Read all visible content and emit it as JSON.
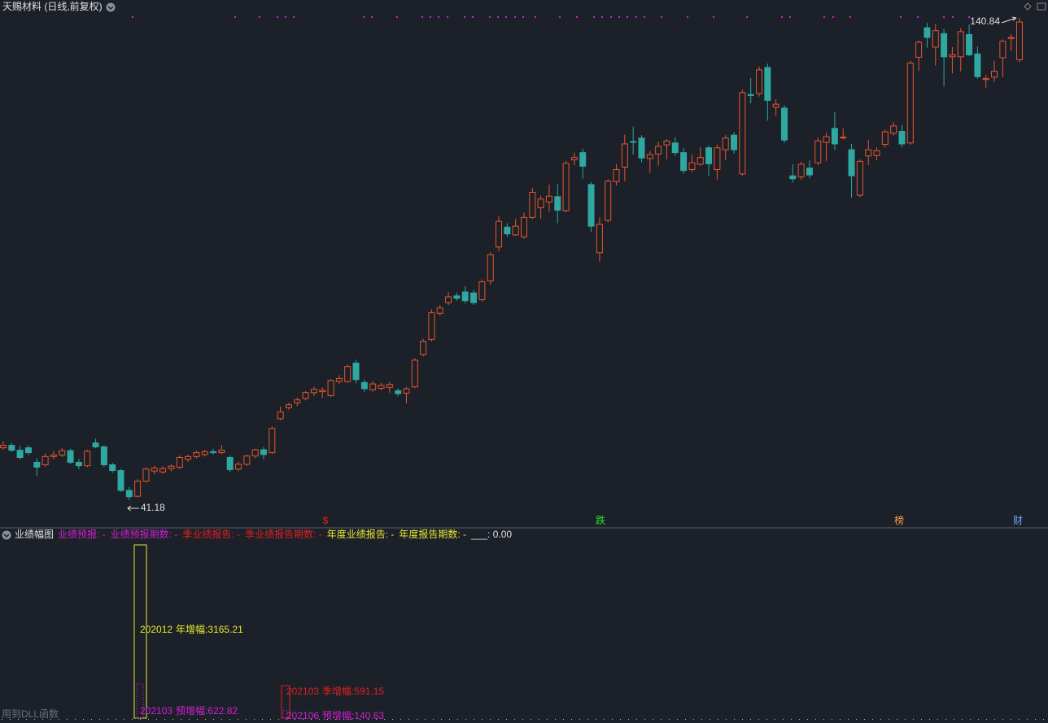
{
  "header": {
    "title": "天赐材料 (日线,前复权)"
  },
  "chart_data": {
    "type": "candlestick",
    "up_color": "#e8562a",
    "down_color": "#2ea8a0",
    "candles": [
      [
        52.0,
        53.3,
        51.6,
        52.5
      ],
      [
        52.5,
        53.0,
        51.1,
        51.5
      ],
      [
        51.5,
        52.4,
        49.6,
        50.0
      ],
      [
        52.0,
        52.5,
        50.5,
        51.0
      ],
      [
        49.0,
        49.8,
        46.2,
        48.0
      ],
      [
        48.5,
        50.8,
        48.1,
        50.2
      ],
      [
        50.2,
        51.3,
        49.6,
        50.5
      ],
      [
        50.5,
        52.0,
        50.1,
        51.4
      ],
      [
        51.4,
        51.8,
        48.6,
        49.0
      ],
      [
        49.0,
        49.7,
        47.6,
        48.3
      ],
      [
        48.3,
        51.6,
        48.0,
        51.3
      ],
      [
        53.0,
        53.9,
        51.9,
        52.2
      ],
      [
        52.2,
        52.5,
        48.1,
        48.5
      ],
      [
        48.5,
        48.9,
        46.8,
        47.3
      ],
      [
        47.3,
        47.6,
        42.9,
        43.2
      ],
      [
        43.2,
        43.9,
        41.18,
        41.9
      ],
      [
        42.0,
        45.5,
        41.8,
        45.1
      ],
      [
        45.1,
        48.0,
        44.8,
        47.6
      ],
      [
        47.2,
        48.3,
        46.5,
        47.8
      ],
      [
        47.0,
        48.2,
        46.6,
        47.7
      ],
      [
        47.7,
        48.6,
        47.1,
        48.2
      ],
      [
        48.0,
        50.4,
        47.6,
        50.0
      ],
      [
        49.6,
        50.6,
        49.1,
        50.2
      ],
      [
        50.2,
        51.4,
        49.8,
        51.0
      ],
      [
        50.6,
        51.6,
        50.2,
        51.2
      ],
      [
        51.2,
        51.8,
        50.6,
        51.0
      ],
      [
        51.0,
        52.6,
        50.7,
        51.5
      ],
      [
        50.0,
        50.4,
        47.0,
        47.5
      ],
      [
        47.6,
        49.1,
        47.2,
        48.6
      ],
      [
        48.6,
        50.6,
        48.2,
        50.3
      ],
      [
        50.3,
        51.8,
        49.8,
        51.6
      ],
      [
        51.6,
        52.2,
        49.6,
        50.6
      ],
      [
        51.0,
        56.4,
        50.7,
        56.0
      ],
      [
        58.0,
        60.5,
        57.7,
        59.4
      ],
      [
        60.3,
        61.3,
        59.9,
        60.9
      ],
      [
        61.3,
        62.4,
        60.6,
        61.9
      ],
      [
        62.2,
        63.7,
        61.8,
        63.4
      ],
      [
        63.4,
        64.6,
        62.7,
        64.1
      ],
      [
        63.6,
        64.5,
        62.3,
        63.9
      ],
      [
        62.8,
        66.2,
        62.5,
        65.9
      ],
      [
        65.7,
        67.0,
        65.2,
        66.3
      ],
      [
        65.7,
        69.2,
        65.4,
        68.8
      ],
      [
        69.5,
        70.2,
        65.3,
        66.1
      ],
      [
        65.5,
        66.1,
        63.6,
        64.2
      ],
      [
        64.0,
        65.8,
        63.6,
        65.2
      ],
      [
        64.3,
        65.4,
        63.9,
        64.9
      ],
      [
        64.5,
        65.6,
        63.4,
        65.1
      ],
      [
        63.8,
        64.3,
        62.6,
        63.2
      ],
      [
        63.3,
        64.6,
        61.2,
        64.2
      ],
      [
        64.6,
        70.5,
        64.3,
        70.1
      ],
      [
        71.3,
        74.5,
        70.9,
        74.0
      ],
      [
        74.4,
        80.6,
        74.0,
        79.9
      ],
      [
        79.8,
        81.5,
        79.3,
        80.9
      ],
      [
        82.0,
        84.2,
        81.5,
        83.2
      ],
      [
        83.4,
        84.1,
        82.4,
        82.9
      ],
      [
        84.2,
        85.4,
        81.8,
        82.4
      ],
      [
        84.0,
        84.6,
        81.5,
        82.0
      ],
      [
        82.6,
        86.8,
        82.2,
        86.3
      ],
      [
        86.5,
        92.4,
        85.7,
        91.9
      ],
      [
        93.5,
        99.9,
        92.6,
        98.8
      ],
      [
        97.6,
        98.4,
        95.6,
        96.2
      ],
      [
        96.0,
        99.3,
        95.8,
        97.8
      ],
      [
        95.6,
        100.6,
        95.2,
        99.6
      ],
      [
        99.6,
        105.7,
        99.3,
        104.8
      ],
      [
        101.6,
        104.1,
        99.4,
        103.4
      ],
      [
        102.8,
        106.4,
        100.8,
        104.0
      ],
      [
        103.9,
        106.5,
        98.4,
        101.1
      ],
      [
        101.0,
        111.3,
        100.7,
        110.8
      ],
      [
        111.5,
        113.0,
        110.4,
        112.0
      ],
      [
        113.0,
        113.8,
        107.6,
        110.2
      ],
      [
        106.4,
        106.9,
        96.6,
        97.8
      ],
      [
        92.3,
        99.6,
        90.5,
        98.2
      ],
      [
        99.0,
        107.5,
        98.6,
        107.1
      ],
      [
        107.0,
        110.6,
        106.2,
        109.5
      ],
      [
        110.0,
        116.7,
        107.1,
        114.8
      ],
      [
        115.3,
        118.4,
        112.6,
        115.2
      ],
      [
        116.0,
        116.6,
        111.0,
        111.9
      ],
      [
        111.8,
        113.3,
        108.8,
        112.6
      ],
      [
        112.7,
        115.3,
        110.3,
        114.3
      ],
      [
        114.6,
        115.8,
        111.6,
        115.4
      ],
      [
        115.0,
        116.2,
        112.3,
        113.0
      ],
      [
        113.0,
        113.9,
        108.6,
        109.3
      ],
      [
        109.5,
        112.6,
        109.0,
        110.9
      ],
      [
        110.6,
        114.1,
        110.3,
        112.0
      ],
      [
        114.0,
        114.5,
        108.2,
        110.7
      ],
      [
        109.5,
        114.7,
        107.4,
        114.0
      ],
      [
        113.6,
        116.6,
        111.5,
        116.0
      ],
      [
        116.6,
        117.2,
        112.8,
        113.6
      ],
      [
        108.6,
        126.0,
        108.2,
        125.4
      ],
      [
        125.0,
        128.4,
        123.2,
        124.8
      ],
      [
        125.2,
        130.8,
        124.6,
        130.1
      ],
      [
        130.6,
        131.4,
        119.6,
        123.8
      ],
      [
        122.4,
        124.0,
        120.6,
        123.0
      ],
      [
        122.2,
        122.8,
        115.0,
        115.6
      ],
      [
        108.2,
        110.6,
        106.8,
        107.6
      ],
      [
        108.0,
        111.1,
        107.4,
        110.6
      ],
      [
        109.8,
        111.4,
        107.7,
        108.4
      ],
      [
        110.9,
        116.1,
        110.4,
        115.4
      ],
      [
        115.1,
        117.2,
        111.3,
        116.3
      ],
      [
        118.0,
        121.4,
        113.6,
        114.8
      ],
      [
        116.1,
        118.0,
        115.7,
        116.2
      ],
      [
        113.6,
        114.8,
        103.7,
        108.2
      ],
      [
        104.2,
        111.6,
        103.8,
        111.2
      ],
      [
        112.3,
        115.6,
        110.4,
        113.6
      ],
      [
        112.4,
        114.1,
        111.4,
        113.4
      ],
      [
        114.7,
        117.8,
        114.1,
        117.3
      ],
      [
        117.0,
        119.3,
        116.5,
        118.5
      ],
      [
        117.4,
        118.7,
        114.1,
        114.8
      ],
      [
        115.0,
        132.0,
        114.6,
        131.5
      ],
      [
        132.7,
        136.2,
        129.9,
        135.8
      ],
      [
        138.8,
        139.8,
        134.7,
        136.8
      ],
      [
        134.8,
        139.6,
        131.0,
        138.2
      ],
      [
        137.6,
        138.6,
        126.7,
        132.8
      ],
      [
        132.8,
        134.8,
        129.4,
        133.2
      ],
      [
        132.8,
        138.7,
        129.8,
        138.0
      ],
      [
        137.4,
        139.5,
        132.9,
        133.2
      ],
      [
        133.4,
        134.9,
        128.3,
        128.7
      ],
      [
        128.1,
        129.0,
        126.4,
        128.3
      ],
      [
        128.6,
        132.0,
        127.6,
        129.8
      ],
      [
        132.6,
        136.4,
        128.6,
        136.0
      ],
      [
        136.6,
        137.5,
        134.0,
        136.8
      ],
      [
        132.2,
        140.84,
        131.6,
        140.0
      ]
    ],
    "price_marks": {
      "high": 140.84,
      "low": 41.18
    }
  },
  "markers": [
    {
      "text": "$",
      "color": "#e02020"
    },
    {
      "text": "跌",
      "color": "#30e030"
    },
    {
      "text": "榜",
      "color": "#f0a040"
    },
    {
      "text": "财",
      "color": "#70a8ff"
    }
  ],
  "indicator": {
    "name": "业绩幅图",
    "legend": [
      {
        "text": "业绩预报: -",
        "color": "#d020d0"
      },
      {
        "text": "业绩预报期数: -",
        "color": "#d020d0"
      },
      {
        "text": "季业绩报告: -",
        "color": "#e02020"
      },
      {
        "text": "季业绩报告期数: -",
        "color": "#e02020"
      },
      {
        "text": "年度业绩报告: -",
        "color": "#e8e830"
      },
      {
        "text": "年度报告期数: -",
        "color": "#e8e830"
      },
      {
        "text": "___: 0.00",
        "color": "#e0e0e0"
      }
    ],
    "bars": [
      {
        "period": "202012",
        "label": "年增幅:",
        "value": 3165.21,
        "color": "#e8e830"
      },
      {
        "period": "202103",
        "label": "预增幅:",
        "value": 622.82,
        "color": "#d020d0"
      },
      {
        "period": "202103",
        "label": "季增幅:",
        "value": 591.15,
        "color": "#e02020"
      },
      {
        "period": "202106",
        "label": "预增幅:",
        "value": 140.63,
        "color": "#d020d0"
      }
    ],
    "footnote": "用到DLL函数"
  }
}
